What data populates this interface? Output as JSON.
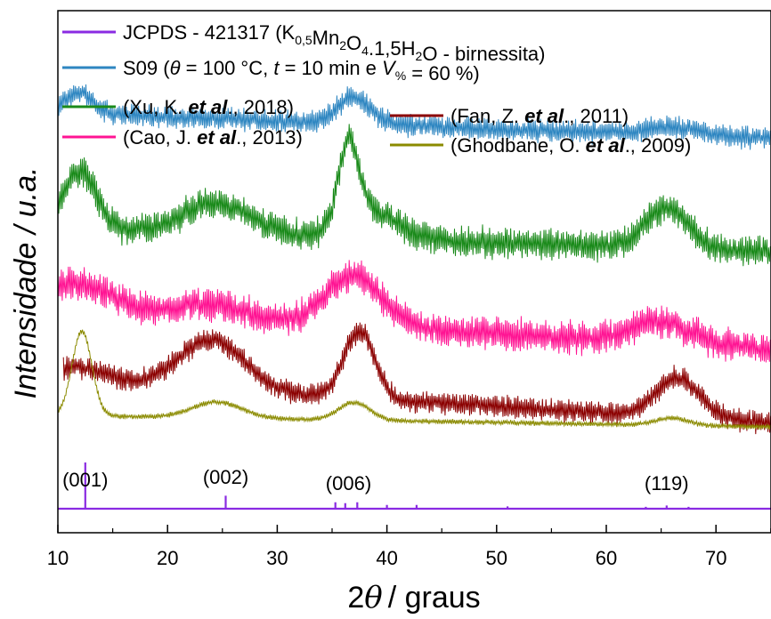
{
  "chart_data": {
    "type": "line",
    "xlabel_prefix": "2",
    "xlabel_symbol": "θ",
    "xlabel_suffix": "/ graus",
    "ylabel": "Intensidade / u.a.",
    "xlim": [
      10,
      75
    ],
    "xticks": [
      "10",
      "20",
      "30",
      "40",
      "50",
      "60",
      "70"
    ],
    "y_tick_labels": false,
    "grid": false,
    "legend_position": "top",
    "peak_labels": [
      {
        "label": "(001)",
        "x": 12.5
      },
      {
        "label": "(002)",
        "x": 25.3
      },
      {
        "label": "(006)",
        "x": 36.5
      },
      {
        "label": "(119)",
        "x": 65.5
      }
    ],
    "series": [
      {
        "name": "JCPDS - 421317 (K0,5Mn2O4.1,5H2O - birnessita)",
        "color": "#8a2be2",
        "kind": "stick",
        "baseline": 0,
        "peaks": [
          [
            12.5,
            1.0
          ],
          [
            25.3,
            0.28
          ],
          [
            35.3,
            0.14
          ],
          [
            36.2,
            0.12
          ],
          [
            37.3,
            0.14
          ],
          [
            40.0,
            0.08
          ],
          [
            42.7,
            0.08
          ],
          [
            51.0,
            0.05
          ],
          [
            65.5,
            0.07
          ],
          [
            63.6,
            0.04
          ],
          [
            67.5,
            0.04
          ]
        ]
      },
      {
        "name": "S09 (θ = 100 °C, t = 10 min e V% = 60 %)",
        "color": "#2e86c1",
        "kind": "pattern",
        "x_start": 10,
        "x_end": 75,
        "baseline": 4.45,
        "slope": -0.0045,
        "noise": 0.22,
        "humps": [
          [
            12.0,
            0.25,
            1.2
          ],
          [
            37.0,
            0.3,
            1.5
          ],
          [
            66.0,
            0.1,
            2.5
          ]
        ]
      },
      {
        "name": "(Xu, K. et al., 2018)",
        "color": "#1a8a1a",
        "kind": "pattern",
        "x_start": 10,
        "x_end": 75,
        "baseline": 3.15,
        "slope": -0.004,
        "noise": 0.3,
        "humps": [
          [
            12.0,
            0.65,
            1.5
          ],
          [
            24.5,
            0.35,
            3.0
          ],
          [
            36.5,
            0.9,
            0.9
          ],
          [
            38.5,
            0.3,
            2.5
          ],
          [
            65.5,
            0.45,
            2.0
          ]
        ]
      },
      {
        "name": "(Cao, J. et al., 2013)",
        "color": "#ff1493",
        "kind": "pattern",
        "x_start": 10,
        "x_end": 75,
        "baseline": 2.25,
        "slope": -0.007,
        "noise": 0.32,
        "humps": [
          [
            12.0,
            0.3,
            3.0
          ],
          [
            24.0,
            0.15,
            3.0
          ],
          [
            37.0,
            0.55,
            2.5
          ],
          [
            65.0,
            0.25,
            2.5
          ]
        ]
      },
      {
        "name": "(Fan, Z. et al., 2011)",
        "color": "#8b0000",
        "kind": "pattern",
        "x_start": 10.5,
        "x_end": 75,
        "baseline": 1.45,
        "slope": -0.0075,
        "noise": 0.22,
        "humps": [
          [
            12.0,
            0.15,
            2.5
          ],
          [
            24.0,
            0.55,
            3.0
          ],
          [
            37.5,
            0.75,
            1.4
          ],
          [
            66.5,
            0.45,
            2.0
          ]
        ]
      },
      {
        "name": "(Ghodbane, O. et al., 2009)",
        "color": "#8b8b00",
        "kind": "pattern",
        "x_start": 10,
        "x_end": 75,
        "baseline": 1.05,
        "slope": -0.002,
        "noise": 0.05,
        "humps": [
          [
            12.2,
            0.95,
            0.9
          ],
          [
            24.5,
            0.18,
            2.2
          ],
          [
            37.0,
            0.2,
            1.4
          ],
          [
            66.0,
            0.08,
            1.5
          ]
        ]
      }
    ],
    "legend": [
      {
        "color": "#8a2be2",
        "parts": [
          [
            "n",
            "JCPDS - 421317 (K"
          ],
          [
            "sub",
            "0,5"
          ],
          [
            "n",
            "Mn"
          ],
          [
            "sub",
            "2"
          ],
          [
            "n",
            "O"
          ],
          [
            "sub",
            "4"
          ],
          [
            "n",
            ".1,5H"
          ],
          [
            "sub",
            "2"
          ],
          [
            "n",
            "O - birnessita)"
          ]
        ]
      },
      {
        "color": "#2e86c1",
        "parts": [
          [
            "n",
            "S09 ("
          ],
          [
            "i",
            "θ"
          ],
          [
            "n",
            " = 100 °C, "
          ],
          [
            "i",
            "t"
          ],
          [
            "n",
            " = 10 min e "
          ],
          [
            "i",
            "V"
          ],
          [
            "sub",
            "%"
          ],
          [
            "n",
            " = 60 %)"
          ]
        ]
      },
      {
        "color": "#1a8a1a",
        "parts": [
          [
            "n",
            "(Xu, K. "
          ],
          [
            "bi",
            "et al"
          ],
          [
            "n",
            "., 2018)"
          ]
        ]
      },
      {
        "color": "#ff1493",
        "parts": [
          [
            "n",
            "(Cao, J. "
          ],
          [
            "bi",
            "et al"
          ],
          [
            "n",
            "., 2013)"
          ]
        ]
      },
      {
        "color": "#8b0000",
        "parts": [
          [
            "n",
            "(Fan, Z. "
          ],
          [
            "bi",
            "et al"
          ],
          [
            "n",
            "., 2011)"
          ]
        ]
      },
      {
        "color": "#8b8b00",
        "parts": [
          [
            "n",
            "(Ghodbane, O. "
          ],
          [
            "bi",
            "et al"
          ],
          [
            "n",
            "., 2009)"
          ]
        ]
      }
    ]
  }
}
